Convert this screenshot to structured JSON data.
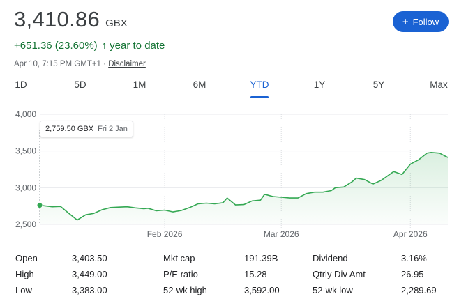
{
  "quote": {
    "price": "3,410.86",
    "currency": "GBX",
    "change": "+651.36 (23.60%)",
    "change_arrow": "↑",
    "period": "year to date",
    "timestamp": "Apr 10, 7:15 PM GMT+1 · ",
    "disclaimer": "Disclaimer"
  },
  "follow": {
    "icon": "+",
    "label": "Follow"
  },
  "tabs": [
    {
      "label": "1D",
      "active": false
    },
    {
      "label": "5D",
      "active": false
    },
    {
      "label": "1M",
      "active": false
    },
    {
      "label": "6M",
      "active": false
    },
    {
      "label": "YTD",
      "active": true
    },
    {
      "label": "1Y",
      "active": false
    },
    {
      "label": "5Y",
      "active": false
    },
    {
      "label": "Max",
      "active": false
    }
  ],
  "tooltip": {
    "value": "2,759.50 GBX",
    "date": "Fri 2 Jan"
  },
  "colors": {
    "line": "#34a853",
    "positive": "#137333",
    "accent": "#1a62d3"
  },
  "chart_data": {
    "type": "area",
    "ylim": [
      2500,
      4000
    ],
    "yticks": [
      2500,
      3000,
      3500,
      4000
    ],
    "ytick_labels": [
      "2,500",
      "3,000",
      "3,500",
      "4,000"
    ],
    "xlim": [
      "2026-01-02",
      "2026-04-10"
    ],
    "xticks": [
      {
        "date": "2026-02-01",
        "label": "Feb 2026"
      },
      {
        "date": "2026-03-01",
        "label": "Mar 2026"
      },
      {
        "date": "2026-04-01",
        "label": "Apr 2026"
      }
    ],
    "grid": true,
    "points": [
      {
        "x": "2026-01-02",
        "y": 2760
      },
      {
        "x": "2026-01-05",
        "y": 2740
      },
      {
        "x": "2026-01-07",
        "y": 2745
      },
      {
        "x": "2026-01-09",
        "y": 2650
      },
      {
        "x": "2026-01-11",
        "y": 2560
      },
      {
        "x": "2026-01-13",
        "y": 2630
      },
      {
        "x": "2026-01-15",
        "y": 2650
      },
      {
        "x": "2026-01-17",
        "y": 2700
      },
      {
        "x": "2026-01-19",
        "y": 2730
      },
      {
        "x": "2026-01-21",
        "y": 2735
      },
      {
        "x": "2026-01-23",
        "y": 2740
      },
      {
        "x": "2026-01-25",
        "y": 2725
      },
      {
        "x": "2026-01-27",
        "y": 2715
      },
      {
        "x": "2026-01-28",
        "y": 2720
      },
      {
        "x": "2026-01-30",
        "y": 2685
      },
      {
        "x": "2026-02-01",
        "y": 2695
      },
      {
        "x": "2026-02-03",
        "y": 2670
      },
      {
        "x": "2026-02-05",
        "y": 2690
      },
      {
        "x": "2026-02-07",
        "y": 2730
      },
      {
        "x": "2026-02-09",
        "y": 2780
      },
      {
        "x": "2026-02-11",
        "y": 2790
      },
      {
        "x": "2026-02-13",
        "y": 2780
      },
      {
        "x": "2026-02-15",
        "y": 2795
      },
      {
        "x": "2026-02-16",
        "y": 2860
      },
      {
        "x": "2026-02-18",
        "y": 2765
      },
      {
        "x": "2026-02-20",
        "y": 2770
      },
      {
        "x": "2026-02-22",
        "y": 2820
      },
      {
        "x": "2026-02-24",
        "y": 2830
      },
      {
        "x": "2026-02-25",
        "y": 2910
      },
      {
        "x": "2026-02-27",
        "y": 2880
      },
      {
        "x": "2026-03-01",
        "y": 2870
      },
      {
        "x": "2026-03-03",
        "y": 2860
      },
      {
        "x": "2026-03-05",
        "y": 2860
      },
      {
        "x": "2026-03-07",
        "y": 2920
      },
      {
        "x": "2026-03-09",
        "y": 2940
      },
      {
        "x": "2026-03-11",
        "y": 2940
      },
      {
        "x": "2026-03-13",
        "y": 2960
      },
      {
        "x": "2026-03-14",
        "y": 3000
      },
      {
        "x": "2026-03-16",
        "y": 3010
      },
      {
        "x": "2026-03-18",
        "y": 3080
      },
      {
        "x": "2026-03-19",
        "y": 3130
      },
      {
        "x": "2026-03-21",
        "y": 3110
      },
      {
        "x": "2026-03-23",
        "y": 3050
      },
      {
        "x": "2026-03-25",
        "y": 3100
      },
      {
        "x": "2026-03-26",
        "y": 3140
      },
      {
        "x": "2026-03-28",
        "y": 3220
      },
      {
        "x": "2026-03-30",
        "y": 3180
      },
      {
        "x": "2026-04-01",
        "y": 3320
      },
      {
        "x": "2026-04-03",
        "y": 3380
      },
      {
        "x": "2026-04-05",
        "y": 3470
      },
      {
        "x": "2026-04-06",
        "y": 3480
      },
      {
        "x": "2026-04-08",
        "y": 3470
      },
      {
        "x": "2026-04-10",
        "y": 3411
      }
    ]
  },
  "stats": [
    {
      "label": "Open",
      "value": "3,403.50"
    },
    {
      "label": "High",
      "value": "3,449.00"
    },
    {
      "label": "Low",
      "value": "3,383.00"
    },
    {
      "label": "Mkt cap",
      "value": "191.39B"
    },
    {
      "label": "P/E ratio",
      "value": "15.28"
    },
    {
      "label": "52-wk high",
      "value": "3,592.00"
    },
    {
      "label": "Dividend",
      "value": "3.16%"
    },
    {
      "label": "Qtrly Div Amt",
      "value": "26.95"
    },
    {
      "label": "52-wk low",
      "value": "2,289.69"
    }
  ]
}
